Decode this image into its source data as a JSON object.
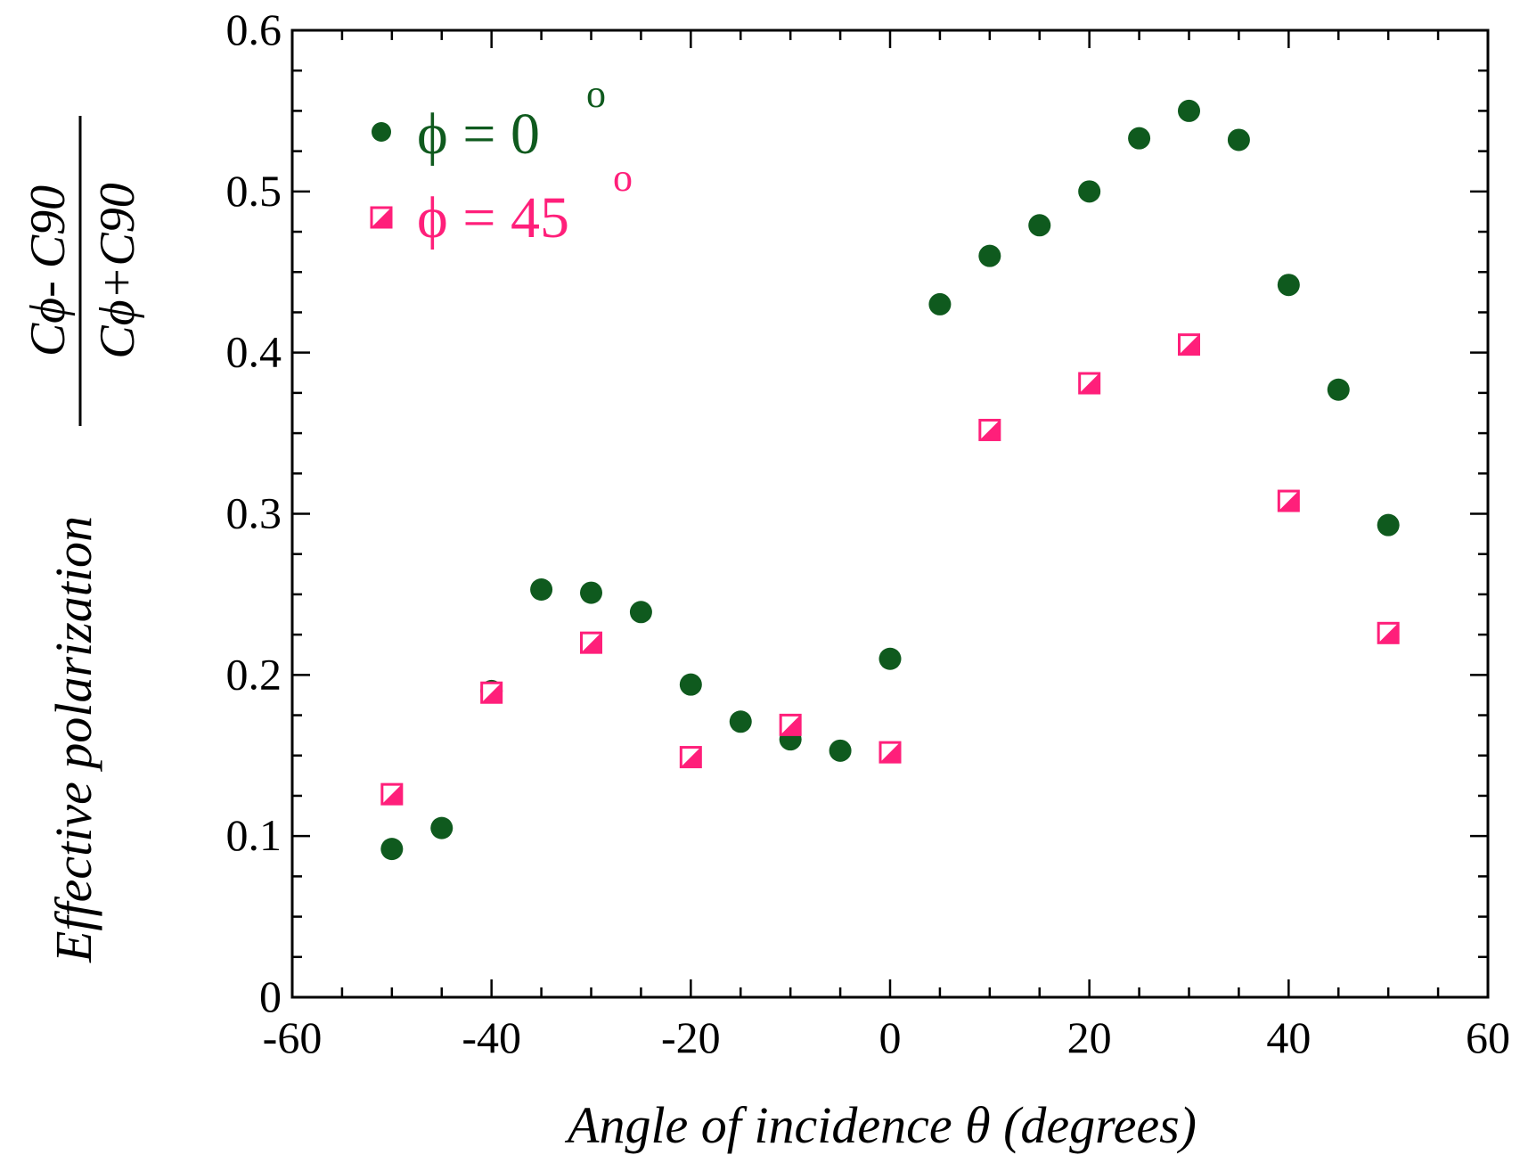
{
  "chart_data": {
    "type": "scatter",
    "xlabel": "Angle of incidence θ (degrees)",
    "ylabel_prefix": "Effective polarization",
    "ylabel_numerator": "Cϕ- C90",
    "ylabel_denominator": "Cϕ+C90",
    "xlim": [
      -60,
      60
    ],
    "ylim": [
      0,
      0.6
    ],
    "x_ticks": [
      "-60",
      "-40",
      "-20",
      "0",
      "20",
      "40",
      "60"
    ],
    "y_ticks": [
      "0",
      "0.1",
      "0.2",
      "0.3",
      "0.4",
      "0.5",
      "0.6"
    ],
    "grid": false,
    "legend_position": "top-left",
    "series": [
      {
        "name": "ϕ = 0",
        "name_sup": "o",
        "color": "#0f5a1e",
        "marker": "circle",
        "x": [
          -50,
          -45,
          -40,
          -35,
          -30,
          -25,
          -20,
          -15,
          -10,
          -5,
          0,
          5,
          10,
          15,
          20,
          25,
          30,
          35,
          40,
          45,
          50
        ],
        "y": [
          0.092,
          0.105,
          0.19,
          0.253,
          0.251,
          0.239,
          0.194,
          0.171,
          0.16,
          0.153,
          0.21,
          0.43,
          0.46,
          0.479,
          0.5,
          0.533,
          0.55,
          0.532,
          0.442,
          0.377,
          0.293
        ]
      },
      {
        "name": "ϕ = 45",
        "name_sup": "o",
        "color": "#ff1f7a",
        "marker": "half-filled-square",
        "x": [
          -50,
          -40,
          -30,
          -20,
          -10,
          0,
          10,
          20,
          30,
          40,
          50
        ],
        "y": [
          0.126,
          0.189,
          0.22,
          0.149,
          0.169,
          0.152,
          0.352,
          0.381,
          0.405,
          0.308,
          0.226
        ]
      }
    ]
  }
}
